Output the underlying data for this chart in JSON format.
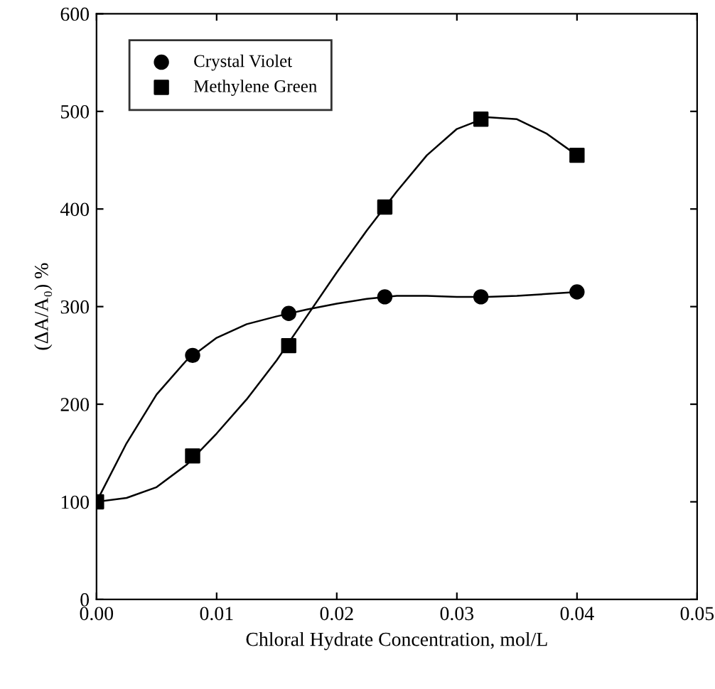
{
  "chart_data": {
    "type": "scatter",
    "xlabel": "Chloral Hydrate Concentration, mol/L",
    "ylabel": "(ΔA/A₀) %",
    "x": [
      0,
      0.008,
      0.016,
      0.024,
      0.032,
      0.04
    ],
    "series": [
      {
        "name": "Crystal Violet",
        "color": "#000000",
        "marker": "circle",
        "values": [
          null,
          250,
          293,
          310,
          310,
          315
        ]
      },
      {
        "name": "Methylene Green",
        "color": "#000000",
        "marker": "square",
        "values": [
          100,
          147,
          260,
          402,
          492,
          455
        ]
      },
      {
        "type": "line",
        "color": "#000000",
        "x": [
          0,
          0.0025,
          0.005,
          0.0075,
          0.01,
          0.0125,
          0.015,
          0.0175,
          0.02,
          0.0225,
          0.025,
          0.0275,
          0.03,
          0.0325,
          0.035,
          0.0375,
          0.04
        ],
        "values": [
          100,
          160,
          210,
          245,
          268,
          282,
          290,
          297,
          303,
          308,
          311,
          311,
          310,
          310,
          311,
          313,
          315
        ]
      },
      {
        "type": "line",
        "color": "#000000",
        "x": [
          0,
          0.0025,
          0.005,
          0.0075,
          0.01,
          0.0125,
          0.015,
          0.0175,
          0.02,
          0.0225,
          0.025,
          0.0275,
          0.03,
          0.0325,
          0.035,
          0.0375,
          0.04
        ],
        "values": [
          100,
          104,
          115,
          138,
          170,
          205,
          245,
          290,
          335,
          378,
          418,
          455,
          482,
          494,
          492,
          477,
          455
        ]
      }
    ],
    "xlim": [
      0,
      0.05
    ],
    "xticks": [
      {
        "value": 0,
        "label": "0.00"
      },
      0.01,
      0.02,
      0.03,
      0.04,
      0.05
    ],
    "ylim": [
      0,
      600
    ],
    "yticks": [
      0,
      100,
      200,
      300,
      400,
      500,
      600
    ],
    "legend": "top left",
    "line_style": "solid"
  }
}
